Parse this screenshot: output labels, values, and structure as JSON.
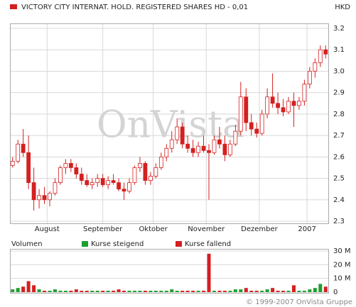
{
  "header": {
    "title": "VICTORY CITY INTERNAT. HOLD. REGISTERED SHARES HD - 0,01",
    "currency": "HKD",
    "watermark": "OnVista",
    "footer": "© 1999-2007 OnVista Gruppe"
  },
  "chart_data": [
    {
      "type": "candlestick",
      "color": "#d42020",
      "categories": [
        null,
        null,
        null,
        null,
        null,
        null,
        null,
        null,
        null,
        null,
        null,
        null,
        null,
        null,
        null,
        null,
        null,
        null,
        null,
        null,
        null,
        null,
        null,
        null,
        null,
        null,
        null,
        null,
        null,
        null,
        null,
        null,
        null,
        null,
        null,
        null,
        null,
        null,
        null,
        null,
        null,
        null,
        null,
        null,
        null,
        null,
        null,
        null,
        null,
        null,
        null,
        null,
        null,
        null,
        null,
        null,
        null,
        null,
        null,
        null
      ],
      "open": [
        2.56,
        2.58,
        2.66,
        2.62,
        2.48,
        2.4,
        2.42,
        2.4,
        2.43,
        2.48,
        2.55,
        2.57,
        2.55,
        2.52,
        2.49,
        2.47,
        2.48,
        2.5,
        2.47,
        2.49,
        2.48,
        2.45,
        2.44,
        2.48,
        2.55,
        2.57,
        2.49,
        2.51,
        2.55,
        2.6,
        2.64,
        2.68,
        2.74,
        2.66,
        2.64,
        2.62,
        2.65,
        2.63,
        2.62,
        2.68,
        2.66,
        2.61,
        2.66,
        2.72,
        2.88,
        2.76,
        2.73,
        2.71,
        2.8,
        2.88,
        2.85,
        2.83,
        2.81,
        2.86,
        2.84,
        2.86,
        2.94,
        3.0,
        3.04,
        3.1
      ],
      "high": [
        2.6,
        2.68,
        2.73,
        2.7,
        2.55,
        2.45,
        2.46,
        2.44,
        2.5,
        2.56,
        2.59,
        2.59,
        2.57,
        2.55,
        2.52,
        2.5,
        2.52,
        2.52,
        2.51,
        2.52,
        2.5,
        2.48,
        2.5,
        2.56,
        2.6,
        2.58,
        2.53,
        2.57,
        2.62,
        2.66,
        2.72,
        2.78,
        2.76,
        2.7,
        2.68,
        2.67,
        2.7,
        2.66,
        2.7,
        2.74,
        2.7,
        2.68,
        2.75,
        2.95,
        2.92,
        2.8,
        2.76,
        2.82,
        2.92,
        2.99,
        2.9,
        2.87,
        2.88,
        2.9,
        2.88,
        2.96,
        3.02,
        3.06,
        3.12,
        3.12
      ],
      "low": [
        2.55,
        2.57,
        2.6,
        2.45,
        2.35,
        2.36,
        2.38,
        2.37,
        2.42,
        2.47,
        2.52,
        2.53,
        2.5,
        2.47,
        2.46,
        2.45,
        2.46,
        2.46,
        2.45,
        2.47,
        2.44,
        2.4,
        2.43,
        2.47,
        2.53,
        2.47,
        2.47,
        2.5,
        2.54,
        2.58,
        2.62,
        2.66,
        2.64,
        2.62,
        2.6,
        2.6,
        2.62,
        2.4,
        2.61,
        2.64,
        2.58,
        2.6,
        2.65,
        2.7,
        2.72,
        2.7,
        2.69,
        2.7,
        2.78,
        2.83,
        2.8,
        2.79,
        2.8,
        2.74,
        2.82,
        2.84,
        2.92,
        2.97,
        3.02,
        3.06
      ],
      "close": [
        2.58,
        2.66,
        2.62,
        2.48,
        2.4,
        2.42,
        2.4,
        2.43,
        2.48,
        2.55,
        2.57,
        2.55,
        2.52,
        2.49,
        2.47,
        2.48,
        2.5,
        2.47,
        2.49,
        2.48,
        2.45,
        2.44,
        2.48,
        2.55,
        2.57,
        2.49,
        2.51,
        2.55,
        2.6,
        2.64,
        2.68,
        2.74,
        2.66,
        2.64,
        2.62,
        2.65,
        2.63,
        2.62,
        2.68,
        2.66,
        2.61,
        2.66,
        2.72,
        2.88,
        2.76,
        2.73,
        2.71,
        2.8,
        2.88,
        2.85,
        2.83,
        2.81,
        2.86,
        2.84,
        2.86,
        2.94,
        3.0,
        3.04,
        3.1,
        3.08
      ],
      "xlim": [
        -0.5,
        59.5
      ],
      "xticks": [
        {
          "value": 6.5,
          "label": "August"
        },
        {
          "value": 17,
          "label": "September"
        },
        {
          "value": 26.5,
          "label": "Oktober"
        },
        {
          "value": 36.5,
          "label": "November"
        },
        {
          "value": 46.5,
          "label": "Dezember"
        },
        {
          "value": 55.5,
          "label": "2007"
        }
      ],
      "ylim": [
        2.3,
        3.2
      ],
      "yticks": [
        {
          "value": 2.3,
          "label": "2.3"
        },
        2.4,
        2.5,
        2.6,
        2.7,
        2.8,
        2.9,
        {
          "value": 3.0,
          "label": "3.0"
        },
        3.1,
        3.2
      ],
      "grid": true
    },
    {
      "type": "bar",
      "title": "Volumen",
      "legend": [
        {
          "name": "Kurse steigend",
          "color": "#1e9e2e"
        },
        {
          "name": "Kurse fallend",
          "color": "#d42020"
        }
      ],
      "values": [
        2,
        3,
        4,
        8,
        5,
        2,
        1,
        1,
        2,
        1,
        1,
        1,
        2,
        1,
        1,
        1,
        1,
        1,
        1,
        1,
        2,
        1,
        1,
        1,
        1,
        1,
        1,
        1,
        1,
        1,
        2,
        1,
        1,
        1,
        1,
        1,
        1,
        28,
        1,
        1,
        1,
        1,
        2,
        2,
        3,
        1,
        1,
        1,
        2,
        3,
        1,
        1,
        1,
        5,
        1,
        1,
        2,
        3,
        6,
        4
      ],
      "xlim": [
        -0.5,
        59.5
      ],
      "ylim": [
        0,
        30
      ],
      "yticks": [
        0,
        {
          "value": 10,
          "label": "10 M"
        },
        {
          "value": 20,
          "label": "20 M"
        },
        {
          "value": 30,
          "label": "30 M"
        }
      ],
      "grid": true
    }
  ]
}
